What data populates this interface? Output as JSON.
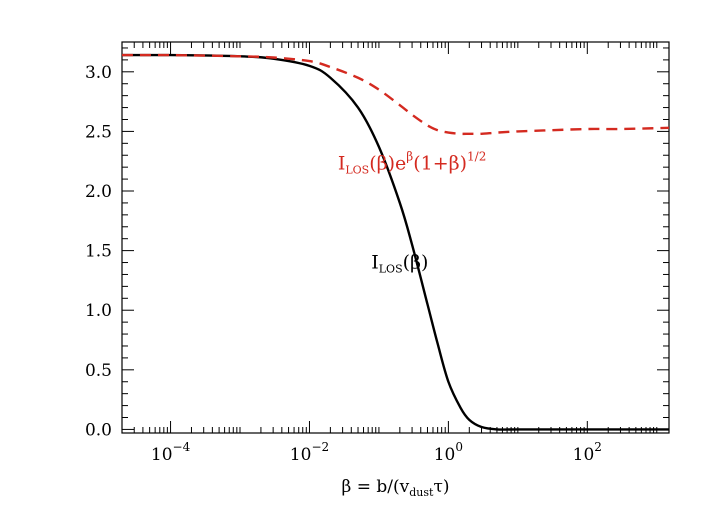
{
  "chart_data": {
    "type": "line",
    "xscale": "log",
    "xlim": [
      2e-05,
      1500
    ],
    "ylim": [
      -0.03,
      3.25
    ],
    "xlabel": "β = b/(v_dust τ)",
    "ylabel": "",
    "x_ticks": [
      {
        "value": 0.0001,
        "base": "10",
        "exponent": "−4"
      },
      {
        "value": 0.01,
        "base": "10",
        "exponent": "−2"
      },
      {
        "value": 1,
        "base": "10",
        "exponent": "0"
      },
      {
        "value": 100,
        "base": "10",
        "exponent": "2"
      }
    ],
    "y_ticks": [
      {
        "value": 0.0,
        "label": "0.0"
      },
      {
        "value": 0.5,
        "label": "0.5"
      },
      {
        "value": 1.0,
        "label": "1.0"
      },
      {
        "value": 1.5,
        "label": "1.5"
      },
      {
        "value": 2.0,
        "label": "2.0"
      },
      {
        "value": 2.5,
        "label": "2.5"
      },
      {
        "value": 3.0,
        "label": "3.0"
      }
    ],
    "grid": false,
    "legend": "none",
    "series": [
      {
        "name": "I_LOS(β)",
        "style": "solid",
        "color": "#000000",
        "x": [
          2e-05,
          0.0001,
          0.001,
          0.003,
          0.01,
          0.02,
          0.05,
          0.1,
          0.2,
          0.3,
          0.5,
          0.7,
          1,
          1.5,
          2,
          3,
          5,
          10,
          100,
          1500
        ],
        "y": [
          3.14,
          3.14,
          3.13,
          3.11,
          3.05,
          2.95,
          2.7,
          2.37,
          1.9,
          1.55,
          1.05,
          0.72,
          0.4,
          0.18,
          0.08,
          0.02,
          0.0,
          0.0,
          0.0,
          0.0
        ]
      },
      {
        "name": "I_LOS(β) e^β (1+β)^1/2",
        "style": "dashed",
        "color": "#d42a20",
        "x": [
          2e-05,
          0.0001,
          0.001,
          0.003,
          0.01,
          0.02,
          0.05,
          0.1,
          0.2,
          0.3,
          0.5,
          0.7,
          1,
          1.5,
          2,
          3,
          5,
          10,
          30,
          100,
          300,
          1500
        ],
        "y": [
          3.14,
          3.14,
          3.13,
          3.12,
          3.09,
          3.04,
          2.95,
          2.85,
          2.72,
          2.64,
          2.55,
          2.51,
          2.49,
          2.48,
          2.48,
          2.48,
          2.49,
          2.5,
          2.51,
          2.52,
          2.52,
          2.53
        ]
      }
    ],
    "annotations": [
      {
        "target": "series-0",
        "base": "I",
        "subscript": "LOS",
        "rest": "(β)",
        "color": "#000000",
        "x": 0.2,
        "y": 1.35
      },
      {
        "target": "series-1",
        "base": "I",
        "subscript": "LOS",
        "mid": "(β)e",
        "superscript1": "β",
        "tail": "(1+β)",
        "superscript2": "1/2",
        "color": "#d42a20",
        "x": 0.3,
        "y": 2.18
      }
    ],
    "xlabel_parts": {
      "lead": "β = b/(v",
      "sub": "dust",
      "tail": "τ)"
    }
  }
}
